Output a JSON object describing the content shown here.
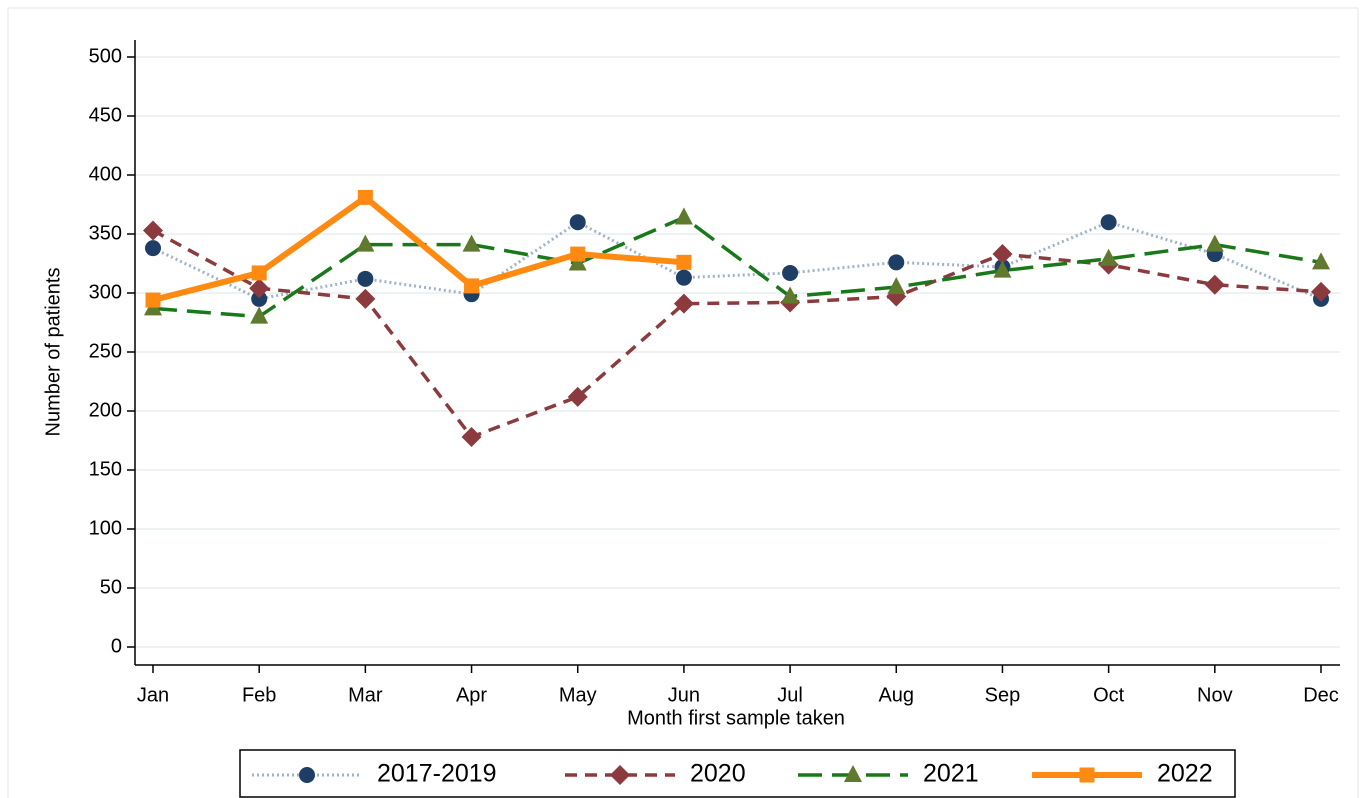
{
  "chart_data": {
    "type": "line",
    "x_label": "Month first sample taken",
    "y_label": "Number of patients",
    "categories": [
      "Jan",
      "Feb",
      "Mar",
      "Apr",
      "May",
      "Jun",
      "Jul",
      "Aug",
      "Sep",
      "Oct",
      "Nov",
      "Dec"
    ],
    "ylim": [
      0,
      500
    ],
    "yticks": [
      0,
      50,
      100,
      150,
      200,
      250,
      300,
      350,
      400,
      450,
      500
    ],
    "grid": true,
    "legend": "bottom",
    "series": [
      {
        "name": "2017-2019",
        "color": "#1f3e66",
        "line_color": "#9fb3c8",
        "dash": "dotted",
        "marker": "circle",
        "values": [
          338,
          295,
          312,
          299,
          360,
          313,
          317,
          326,
          322,
          360,
          333,
          295
        ]
      },
      {
        "name": "2020",
        "color": "#8b3a3e",
        "line_color": "#8b3a3e",
        "dash": "dashed",
        "marker": "diamond",
        "values": [
          353,
          304,
          295,
          178,
          212,
          291,
          292,
          297,
          333,
          324,
          307,
          301
        ]
      },
      {
        "name": "2021",
        "color": "#5f7a2e",
        "line_color": "#197819",
        "dash": "longdash",
        "marker": "triangle",
        "values": [
          287,
          280,
          341,
          341,
          325,
          364,
          297,
          305,
          319,
          329,
          341,
          326
        ]
      },
      {
        "name": "2022",
        "color": "#ff8a12",
        "line_color": "#ff8a12",
        "dash": "solid",
        "marker": "square",
        "values": [
          294,
          317,
          381,
          306,
          333,
          326,
          null,
          null,
          null,
          null,
          null,
          null
        ]
      }
    ]
  }
}
